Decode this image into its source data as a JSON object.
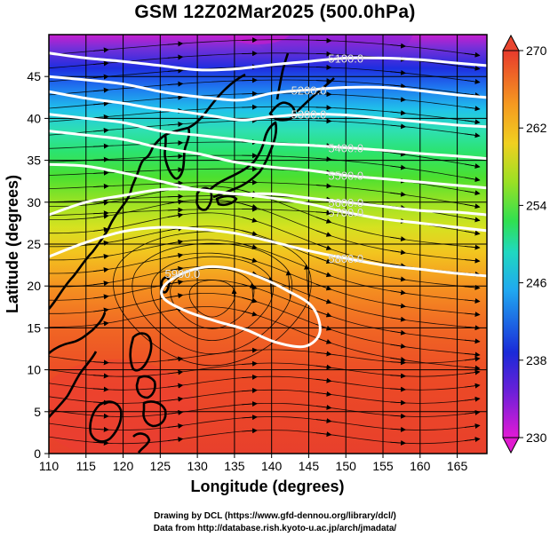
{
  "title": "GSM 12Z02Mar2025 (500.0hPa)",
  "chart_data": {
    "type": "map",
    "title": "GSM 12Z02Mar2025 (500.0hPa)",
    "xlabel": "Longitude (degrees)",
    "ylabel": "Latitude  (degrees)",
    "xlim": [
      110,
      169
    ],
    "ylim": [
      0,
      50
    ],
    "x_ticks": [
      "110",
      "115",
      "120",
      "125",
      "130",
      "135",
      "140",
      "145",
      "150",
      "155",
      "160",
      "165"
    ],
    "y_ticks": [
      "0",
      "5",
      "10",
      "15",
      "20",
      "25",
      "30",
      "35",
      "40",
      "45"
    ],
    "shaded_field_range": [
      230,
      270
    ],
    "colorbar_ticks": [
      "230",
      "238",
      "246",
      "254",
      "262",
      "270"
    ],
    "contours": [
      {
        "label": "5100.0",
        "points": [
          [
            110,
            47.8
          ],
          [
            115,
            47.2
          ],
          [
            120,
            46.8
          ],
          [
            125,
            46.3
          ],
          [
            130,
            45.8
          ],
          [
            135,
            45.9
          ],
          [
            140,
            46.4
          ],
          [
            145,
            46.8
          ],
          [
            150,
            47.2
          ],
          [
            155,
            47.2
          ],
          [
            160,
            47
          ],
          [
            165,
            46.6
          ],
          [
            169,
            46.3
          ]
        ]
      },
      {
        "label": "5200.0",
        "points": [
          [
            110,
            45
          ],
          [
            115,
            44.6
          ],
          [
            120,
            44.1
          ],
          [
            125,
            43.2
          ],
          [
            128,
            42.8
          ],
          [
            132,
            42.4
          ],
          [
            136,
            42.2
          ],
          [
            140,
            43
          ],
          [
            145,
            43.4
          ],
          [
            150,
            43.7
          ],
          [
            155,
            43.7
          ],
          [
            160,
            43.3
          ],
          [
            165,
            42.8
          ],
          [
            169,
            42.5
          ]
        ]
      },
      {
        "label": "5300.0",
        "points": [
          [
            110,
            43.2
          ],
          [
            115,
            42.4
          ],
          [
            120,
            41.8
          ],
          [
            124,
            41.2
          ],
          [
            128,
            40.8
          ],
          [
            132,
            40.3
          ],
          [
            136,
            39.8
          ],
          [
            140,
            40.2
          ],
          [
            145,
            40.5
          ],
          [
            150,
            40.4
          ],
          [
            155,
            40
          ],
          [
            160,
            39.6
          ],
          [
            165,
            39.2
          ],
          [
            169,
            39
          ]
        ]
      },
      {
        "label": "5400.0",
        "points": [
          [
            110,
            40.5
          ],
          [
            115,
            40
          ],
          [
            120,
            39.5
          ],
          [
            125,
            38.5
          ],
          [
            130,
            38
          ],
          [
            135,
            37.5
          ],
          [
            140,
            37
          ],
          [
            145,
            36.8
          ],
          [
            150,
            36.5
          ],
          [
            155,
            36.2
          ],
          [
            160,
            35.8
          ],
          [
            165,
            35.5
          ],
          [
            169,
            35.2
          ]
        ]
      },
      {
        "label": "5500.0",
        "points": [
          [
            110,
            38.5
          ],
          [
            115,
            38
          ],
          [
            120,
            37.5
          ],
          [
            125,
            36.5
          ],
          [
            130,
            35.8
          ],
          [
            135,
            34.8
          ],
          [
            140,
            34.2
          ],
          [
            145,
            33.8
          ],
          [
            150,
            33.2
          ],
          [
            155,
            32.8
          ],
          [
            160,
            32.4
          ],
          [
            165,
            32
          ],
          [
            169,
            31.7
          ]
        ]
      },
      {
        "label": "5600.0",
        "points": [
          [
            110,
            34.5
          ],
          [
            115,
            34.3
          ],
          [
            120,
            33.5
          ],
          [
            125,
            32.5
          ],
          [
            130,
            31.5
          ],
          [
            135,
            31
          ],
          [
            140,
            31
          ],
          [
            145,
            30.5
          ],
          [
            150,
            30
          ],
          [
            155,
            29.5
          ],
          [
            160,
            29
          ],
          [
            165,
            28.8
          ],
          [
            169,
            28.5
          ]
        ]
      },
      {
        "label": "5700.0",
        "points": [
          [
            110,
            28.5
          ],
          [
            115,
            30
          ],
          [
            120,
            30.8
          ],
          [
            125,
            31.5
          ],
          [
            130,
            31.5
          ],
          [
            135,
            31
          ],
          [
            140,
            30.5
          ],
          [
            145,
            29.8
          ],
          [
            150,
            28.8
          ],
          [
            155,
            28
          ],
          [
            160,
            27.5
          ],
          [
            165,
            27
          ],
          [
            169,
            26.6
          ]
        ]
      },
      {
        "label": "5800.0",
        "points": [
          [
            110,
            23.5
          ],
          [
            115,
            25.2
          ],
          [
            120,
            26.5
          ],
          [
            125,
            27
          ],
          [
            130,
            26.8
          ],
          [
            135,
            26.3
          ],
          [
            140,
            25.3
          ],
          [
            145,
            24.2
          ],
          [
            150,
            23.3
          ],
          [
            155,
            22.5
          ],
          [
            160,
            22
          ],
          [
            165,
            21.5
          ],
          [
            169,
            21.2
          ]
        ]
      },
      {
        "label": "5900.0",
        "closed": true,
        "points": [
          [
            125.5,
            20
          ],
          [
            128,
            21.5
          ],
          [
            131.5,
            22.3
          ],
          [
            135,
            22
          ],
          [
            138.5,
            21
          ],
          [
            142,
            19.5
          ],
          [
            145.5,
            17.5
          ],
          [
            146.5,
            14.5
          ],
          [
            144.5,
            12.8
          ],
          [
            140.5,
            13.3
          ],
          [
            136.5,
            14.8
          ],
          [
            132.5,
            15.8
          ],
          [
            128.5,
            17
          ],
          [
            125.5,
            18.5
          ]
        ]
      }
    ],
    "legend": "right colorbar"
  },
  "credits": {
    "line1": "Drawing by DCL (https://www.gfd-dennou.org/library/dcl/)",
    "line2": "Data from http://database.rish.kyoto-u.ac.jp/arch/jmadata/"
  }
}
